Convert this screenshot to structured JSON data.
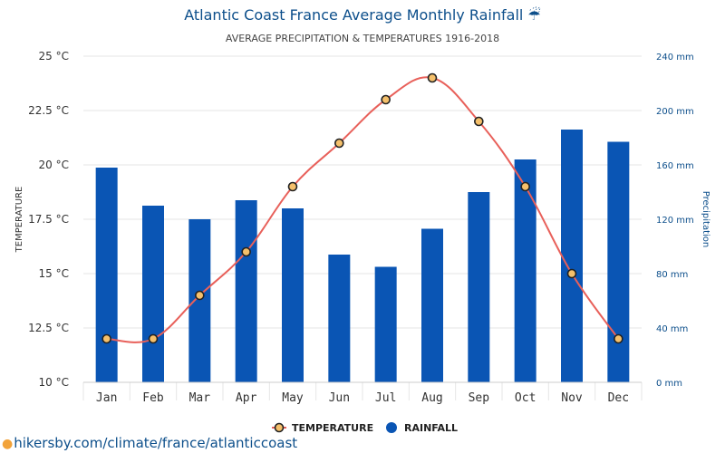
{
  "title": "Atlantic Coast France Average Monthly Rainfall ☔",
  "subtitle": "AVERAGE PRECIPITATION & TEMPERATURES 1916-2018",
  "footer_url": "hikersby.com/climate/france/atlanticcoast",
  "colors": {
    "rainfall": "#0a55b4",
    "temperature": "#e8605a",
    "marker_fill": "#f5c06b",
    "title": "#0d4f8b"
  },
  "chart_data": {
    "type": "bar",
    "categories": [
      "Jan",
      "Feb",
      "Mar",
      "Apr",
      "May",
      "Jun",
      "Jul",
      "Aug",
      "Sep",
      "Oct",
      "Nov",
      "Dec"
    ],
    "left_axis": {
      "label": "TEMPERATURE",
      "range": [
        10,
        25
      ],
      "ticks": [
        "10 °C",
        "12.5 °C",
        "15 °C",
        "17.5 °C",
        "20 °C",
        "22.5 °C",
        "25 °C"
      ]
    },
    "right_axis": {
      "label": "Precipitation",
      "range": [
        0,
        240
      ],
      "ticks": [
        "0 mm",
        "40 mm",
        "80 mm",
        "120 mm",
        "160 mm",
        "200 mm",
        "240 mm"
      ]
    },
    "series": [
      {
        "name": "RAINFALL",
        "type": "bar",
        "axis": "right",
        "values": [
          158,
          130,
          120,
          134,
          128,
          94,
          85,
          113,
          140,
          164,
          186,
          177
        ]
      },
      {
        "name": "TEMPERATURE",
        "type": "line",
        "axis": "left",
        "values": [
          12,
          12,
          14,
          16,
          19,
          21,
          23,
          24,
          22,
          19,
          15,
          12
        ]
      }
    ],
    "legend": [
      "TEMPERATURE",
      "RAINFALL"
    ],
    "legend_position": "bottom",
    "grid": true
  }
}
